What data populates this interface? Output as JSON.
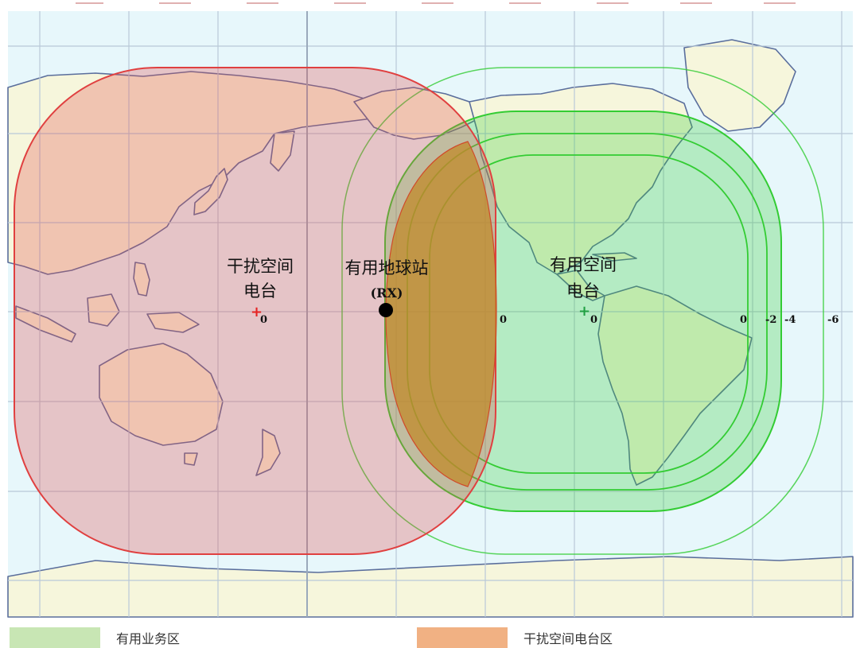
{
  "map": {
    "interfering_station": {
      "title_line1": "干扰空间",
      "title_line2": "电台",
      "marker_color": "#e52222"
    },
    "wanted_station": {
      "title_line1": "有用空间",
      "title_line2": "电台",
      "marker_color": "#21a043"
    },
    "earth_station": {
      "title": "有用地球站",
      "code": "(RX)"
    },
    "interfering_contour_labels": [
      "0"
    ],
    "wanted_contour_labels": [
      "0",
      "0",
      "0",
      "-2",
      "-4",
      "-6"
    ]
  },
  "legend": {
    "wanted_service_area": {
      "label": "有用业务区",
      "color": "#c8e6b4"
    },
    "interfering_station_area": {
      "label": "干扰空间电台区",
      "color": "#f1b183"
    }
  },
  "colors": {
    "ocean": "#e7f7fb",
    "land": "#f6f6dc",
    "grid": "#b9c9d8",
    "coast": "#5a6e9c",
    "interfering_zone": "#e05050",
    "wanted_zone": "#33cc33",
    "overlap": "#c08a2a"
  }
}
